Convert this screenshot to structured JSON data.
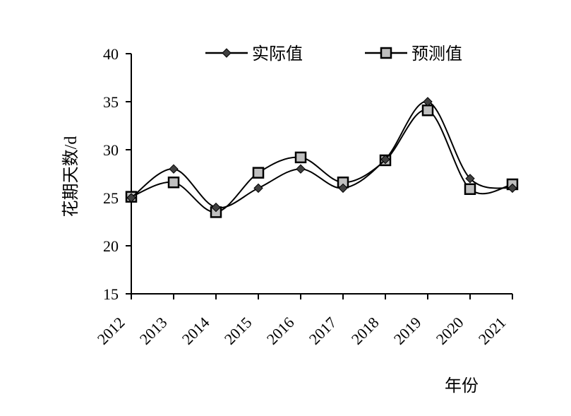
{
  "chart_data": {
    "type": "line",
    "title": "",
    "xlabel": "年份",
    "ylabel": "花期天数/d",
    "categories": [
      "2012",
      "2013",
      "2014",
      "2015",
      "2016",
      "2017",
      "2018",
      "2019",
      "2020",
      "2021"
    ],
    "ylim": [
      15,
      40
    ],
    "yticks": [
      15,
      20,
      25,
      30,
      35,
      40
    ],
    "grid": false,
    "legend_position": "top",
    "series": [
      {
        "name": "实际值",
        "marker": "diamond",
        "color": "#000000",
        "marker_fill": "#404040",
        "values": [
          25,
          28,
          24,
          26,
          28,
          26,
          29,
          35,
          27,
          26
        ]
      },
      {
        "name": "预测值",
        "marker": "square",
        "color": "#000000",
        "marker_fill": "#bfbfbf",
        "values": [
          25.1,
          26.6,
          23.5,
          27.6,
          29.2,
          26.6,
          28.9,
          34.1,
          25.9,
          26.4
        ]
      }
    ]
  }
}
